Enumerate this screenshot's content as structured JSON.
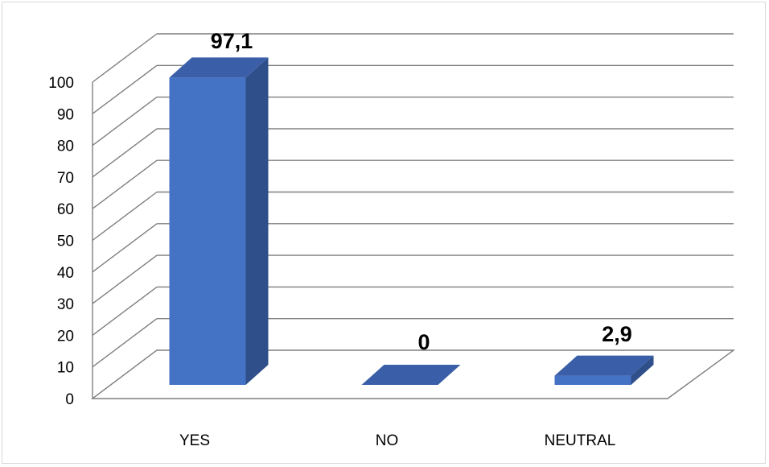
{
  "chart_data": {
    "type": "bar",
    "categories": [
      "YES",
      "NO",
      "NEUTRAL"
    ],
    "values": [
      97.1,
      0,
      2.9
    ],
    "data_labels": [
      "97,1",
      "0",
      "2,9"
    ],
    "ylim": [
      0,
      100
    ],
    "yticks": [
      "0",
      "10",
      "20",
      "30",
      "40",
      "50",
      "60",
      "70",
      "80",
      "90",
      "100"
    ],
    "grid": true,
    "legend": false,
    "three_d": true,
    "colors": {
      "bar_front": "#4472C4",
      "bar_side": "#2F4F8A",
      "bar_top": "#3A5FA8",
      "grid": "#7f7f7f"
    }
  }
}
